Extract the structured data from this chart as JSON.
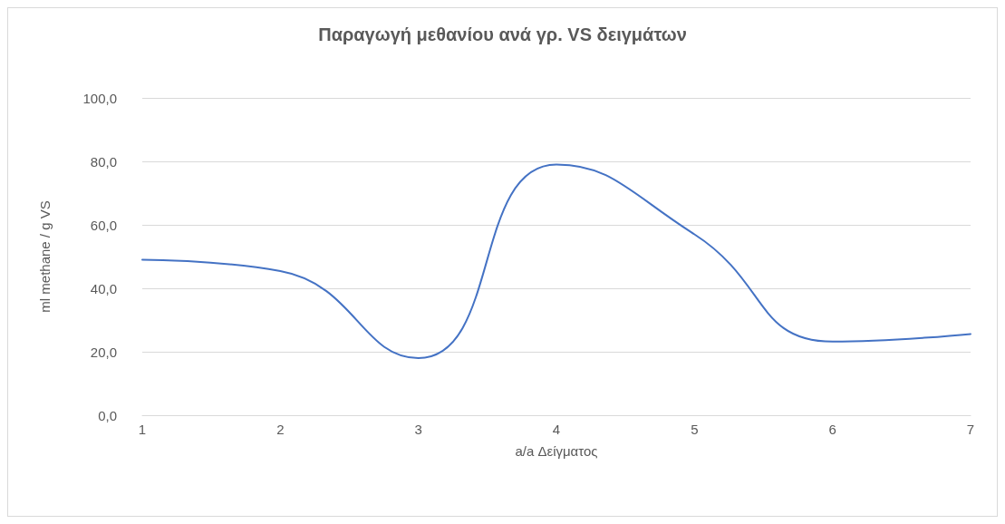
{
  "chart_data": {
    "type": "line",
    "title": "Παραγωγή μεθανίου ανά γρ. VS δειγμάτων",
    "xlabel": "a/a Δείγματος",
    "ylabel": "ml methane / g VS",
    "categories": [
      "1",
      "2",
      "3",
      "4",
      "5",
      "6",
      "7"
    ],
    "series": [
      {
        "color": "#4472c4",
        "values": [
          49,
          45.4,
          18,
          79,
          57,
          23.2,
          25.6
        ]
      }
    ],
    "ylim": [
      0,
      100
    ],
    "yticks": [
      {
        "value": 0,
        "label": "0,0"
      },
      {
        "value": 20,
        "label": "20,0"
      },
      {
        "value": 40,
        "label": "40,0"
      },
      {
        "value": 60,
        "label": "60,0"
      },
      {
        "value": 80,
        "label": "80,0"
      },
      {
        "value": 100,
        "label": "100,0"
      }
    ],
    "grid": "y",
    "marker": "none",
    "line_style": "solid"
  }
}
